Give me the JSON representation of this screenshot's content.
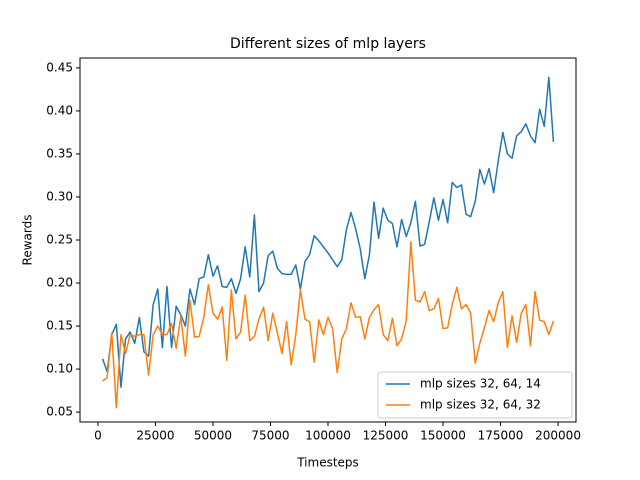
{
  "chart_data": {
    "type": "line",
    "title": "Different sizes of mlp layers",
    "x_label": "Timesteps",
    "y_label": "Rewards",
    "x": [
      2000,
      4000,
      6000,
      8000,
      10000,
      12000,
      14000,
      16000,
      18000,
      20000,
      22000,
      24000,
      26000,
      28000,
      30000,
      32000,
      34000,
      36000,
      38000,
      40000,
      42000,
      44000,
      46000,
      48000,
      50000,
      52000,
      54000,
      56000,
      58000,
      60000,
      62000,
      64000,
      66000,
      68000,
      70000,
      72000,
      74000,
      76000,
      78000,
      80000,
      82000,
      84000,
      86000,
      88000,
      90000,
      92000,
      94000,
      96000,
      98000,
      100000,
      102000,
      104000,
      106000,
      108000,
      110000,
      112000,
      114000,
      116000,
      118000,
      120000,
      122000,
      124000,
      126000,
      128000,
      130000,
      132000,
      134000,
      136000,
      138000,
      140000,
      142000,
      144000,
      146000,
      148000,
      150000,
      152000,
      154000,
      156000,
      158000,
      160000,
      162000,
      164000,
      166000,
      168000,
      170000,
      172000,
      174000,
      176000,
      178000,
      180000,
      182000,
      184000,
      186000,
      188000,
      190000,
      192000,
      194000,
      196000,
      198000
    ],
    "series": [
      {
        "name": "mlp sizes 32, 64, 14",
        "color": "#1f77b4",
        "values": [
          0.112,
          0.097,
          0.14,
          0.152,
          0.079,
          0.135,
          0.143,
          0.13,
          0.16,
          0.12,
          0.115,
          0.175,
          0.193,
          0.125,
          0.196,
          0.125,
          0.173,
          0.163,
          0.15,
          0.193,
          0.175,
          0.205,
          0.207,
          0.233,
          0.208,
          0.22,
          0.196,
          0.195,
          0.205,
          0.188,
          0.205,
          0.242,
          0.207,
          0.279,
          0.19,
          0.2,
          0.232,
          0.237,
          0.217,
          0.211,
          0.21,
          0.21,
          0.221,
          0.193,
          0.225,
          0.233,
          0.255,
          0.249,
          0.242,
          0.235,
          0.227,
          0.219,
          0.227,
          0.262,
          0.282,
          0.263,
          0.24,
          0.205,
          0.233,
          0.294,
          0.252,
          0.287,
          0.273,
          0.269,
          0.242,
          0.274,
          0.254,
          0.27,
          0.295,
          0.243,
          0.245,
          0.271,
          0.299,
          0.273,
          0.297,
          0.27,
          0.317,
          0.311,
          0.314,
          0.28,
          0.277,
          0.295,
          0.332,
          0.315,
          0.333,
          0.305,
          0.342,
          0.375,
          0.35,
          0.345,
          0.371,
          0.376,
          0.385,
          0.371,
          0.363,
          0.402,
          0.382,
          0.439,
          0.364
        ]
      },
      {
        "name": "mlp sizes 32, 64, 32",
        "color": "#ff7f0e",
        "values": [
          0.086,
          0.09,
          0.142,
          0.055,
          0.14,
          0.118,
          0.14,
          0.138,
          0.14,
          0.14,
          0.093,
          0.14,
          0.15,
          0.14,
          0.14,
          0.153,
          0.124,
          0.161,
          0.115,
          0.18,
          0.137,
          0.138,
          0.16,
          0.198,
          0.165,
          0.158,
          0.172,
          0.11,
          0.192,
          0.135,
          0.143,
          0.186,
          0.133,
          0.138,
          0.158,
          0.172,
          0.133,
          0.165,
          0.142,
          0.118,
          0.155,
          0.105,
          0.14,
          0.192,
          0.158,
          0.155,
          0.108,
          0.157,
          0.14,
          0.16,
          0.147,
          0.096,
          0.135,
          0.147,
          0.177,
          0.16,
          0.161,
          0.135,
          0.16,
          0.169,
          0.175,
          0.14,
          0.133,
          0.159,
          0.127,
          0.135,
          0.156,
          0.248,
          0.18,
          0.178,
          0.19,
          0.168,
          0.17,
          0.182,
          0.147,
          0.148,
          0.175,
          0.195,
          0.17,
          0.175,
          0.165,
          0.107,
          0.13,
          0.148,
          0.168,
          0.155,
          0.177,
          0.19,
          0.125,
          0.162,
          0.131,
          0.165,
          0.175,
          0.127,
          0.19,
          0.157,
          0.155,
          0.14,
          0.156
        ]
      }
    ],
    "xlim": [
      -7800,
      207800
    ],
    "ylim": [
      0.0385,
      0.4615
    ],
    "xticks": [
      0,
      25000,
      50000,
      75000,
      100000,
      125000,
      150000,
      175000,
      200000
    ],
    "yticks": [
      0.05,
      {
        "value": 0.1,
        "label": "0.10"
      },
      0.15,
      {
        "value": 0.2,
        "label": "0.20"
      },
      0.25,
      {
        "value": 0.3,
        "label": "0.30"
      },
      0.35,
      {
        "value": 0.4,
        "label": "0.40"
      },
      0.45
    ],
    "legend": "lower right"
  }
}
